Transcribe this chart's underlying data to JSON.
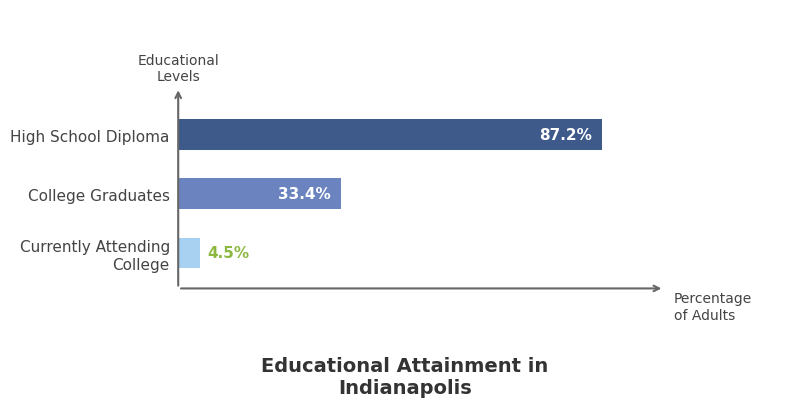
{
  "categories": [
    "High School Diploma",
    "College Graduates",
    "Currently Attending\nCollege"
  ],
  "values": [
    87.2,
    33.4,
    4.5
  ],
  "bar_colors": [
    "#3d5a8a",
    "#6b84c0",
    "#a8d0f0"
  ],
  "label_colors": [
    "white",
    "white",
    "#8db840"
  ],
  "label_texts": [
    "87.2%",
    "33.4%",
    "4.5%"
  ],
  "title": "Educational Attainment in\nIndianapolis",
  "xlabel": "Percentage\nof Adults",
  "ylabel": "Educational\nLevels",
  "xlim": [
    0,
    100
  ],
  "title_fontsize": 14,
  "label_fontsize": 11,
  "bar_height": 0.52,
  "background_color": "#ffffff",
  "axis_color": "#666666"
}
